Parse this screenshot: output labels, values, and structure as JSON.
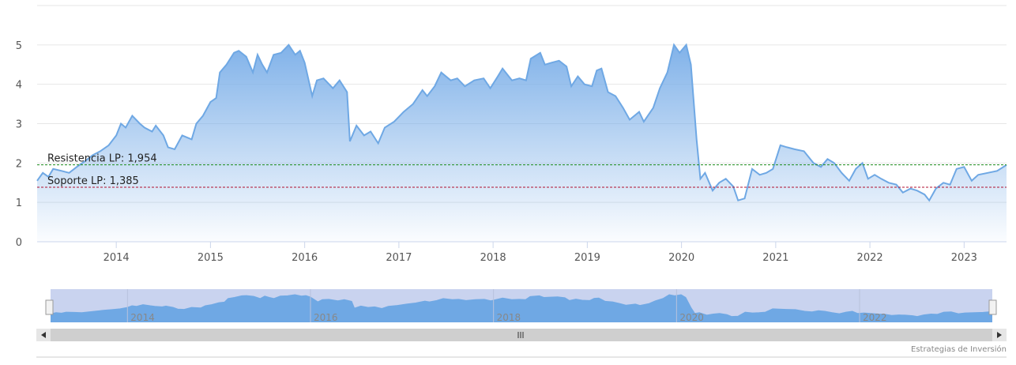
{
  "chart_data": {
    "type": "area",
    "credits": "Estrategias de Inversión",
    "xlim": [
      2013.16,
      2023.45
    ],
    "xticks": [
      2014,
      2015,
      2016,
      2017,
      2018,
      2019,
      2020,
      2021,
      2022,
      2023
    ],
    "ylim": [
      0,
      6
    ],
    "yticks": [
      0,
      1,
      2,
      3,
      4,
      5
    ],
    "grid": true,
    "navigator_xticks": [
      2014,
      2016,
      2018,
      2020,
      2022
    ],
    "lines": [
      {
        "label": "Resistencia LP: 1,954",
        "value": 1.954,
        "color": "#1a8a1a"
      },
      {
        "label": "Soporte LP: 1,385",
        "value": 1.385,
        "color": "#b01030"
      }
    ],
    "series": [
      {
        "color": "#6fa8e4",
        "x": [
          2013.16,
          2013.22,
          2013.28,
          2013.33,
          2013.42,
          2013.5,
          2013.58,
          2013.67,
          2013.75,
          2013.83,
          2013.92,
          2014.0,
          2014.05,
          2014.1,
          2014.17,
          2014.25,
          2014.3,
          2014.38,
          2014.42,
          2014.5,
          2014.55,
          2014.62,
          2014.7,
          2014.8,
          2014.85,
          2014.92,
          2015.0,
          2015.06,
          2015.1,
          2015.17,
          2015.25,
          2015.3,
          2015.38,
          2015.45,
          2015.5,
          2015.55,
          2015.6,
          2015.67,
          2015.75,
          2015.83,
          2015.9,
          2015.95,
          2016.0,
          2016.08,
          2016.13,
          2016.2,
          2016.3,
          2016.37,
          2016.45,
          2016.48,
          2016.55,
          2016.63,
          2016.7,
          2016.78,
          2016.85,
          2016.95,
          2017.05,
          2017.15,
          2017.25,
          2017.3,
          2017.38,
          2017.45,
          2017.55,
          2017.62,
          2017.7,
          2017.8,
          2017.9,
          2017.97,
          2018.05,
          2018.1,
          2018.2,
          2018.28,
          2018.35,
          2018.4,
          2018.5,
          2018.55,
          2018.62,
          2018.7,
          2018.78,
          2018.83,
          2018.9,
          2018.97,
          2019.05,
          2019.1,
          2019.15,
          2019.22,
          2019.3,
          2019.38,
          2019.45,
          2019.55,
          2019.6,
          2019.7,
          2019.77,
          2019.85,
          2019.92,
          2019.98,
          2020.05,
          2020.1,
          2020.16,
          2020.2,
          2020.25,
          2020.33,
          2020.4,
          2020.47,
          2020.55,
          2020.6,
          2020.67,
          2020.75,
          2020.83,
          2020.9,
          2020.97,
          2021.05,
          2021.12,
          2021.2,
          2021.3,
          2021.4,
          2021.48,
          2021.55,
          2021.62,
          2021.7,
          2021.78,
          2021.85,
          2021.92,
          2021.98,
          2022.05,
          2022.12,
          2022.2,
          2022.28,
          2022.35,
          2022.43,
          2022.5,
          2022.58,
          2022.63,
          2022.7,
          2022.78,
          2022.85,
          2022.92,
          2023.0,
          2023.08,
          2023.15,
          2023.25,
          2023.35,
          2023.45
        ],
        "values": [
          1.55,
          1.75,
          1.65,
          1.85,
          1.8,
          1.75,
          1.9,
          2.05,
          2.2,
          2.3,
          2.45,
          2.7,
          3.0,
          2.9,
          3.2,
          3.0,
          2.9,
          2.8,
          2.95,
          2.7,
          2.4,
          2.35,
          2.7,
          2.6,
          3.0,
          3.2,
          3.55,
          3.65,
          4.3,
          4.5,
          4.8,
          4.85,
          4.7,
          4.3,
          4.75,
          4.5,
          4.3,
          4.75,
          4.8,
          5.0,
          4.75,
          4.85,
          4.55,
          3.7,
          4.1,
          4.15,
          3.9,
          4.1,
          3.8,
          2.55,
          2.95,
          2.7,
          2.8,
          2.5,
          2.9,
          3.05,
          3.3,
          3.5,
          3.85,
          3.7,
          3.95,
          4.3,
          4.1,
          4.15,
          3.95,
          4.1,
          4.15,
          3.9,
          4.2,
          4.4,
          4.1,
          4.15,
          4.1,
          4.65,
          4.8,
          4.5,
          4.55,
          4.6,
          4.45,
          3.95,
          4.2,
          4.0,
          3.95,
          4.35,
          4.4,
          3.8,
          3.7,
          3.4,
          3.1,
          3.3,
          3.05,
          3.4,
          3.9,
          4.3,
          5.0,
          4.8,
          5.0,
          4.5,
          2.6,
          1.6,
          1.75,
          1.3,
          1.5,
          1.6,
          1.4,
          1.05,
          1.1,
          1.85,
          1.7,
          1.75,
          1.85,
          2.45,
          2.4,
          2.35,
          2.3,
          2.0,
          1.9,
          2.1,
          2.0,
          1.75,
          1.55,
          1.85,
          2.0,
          1.6,
          1.7,
          1.6,
          1.5,
          1.45,
          1.25,
          1.35,
          1.3,
          1.2,
          1.05,
          1.35,
          1.5,
          1.45,
          1.85,
          1.9,
          1.55,
          1.7,
          1.75,
          1.8,
          1.95
        ]
      }
    ]
  }
}
